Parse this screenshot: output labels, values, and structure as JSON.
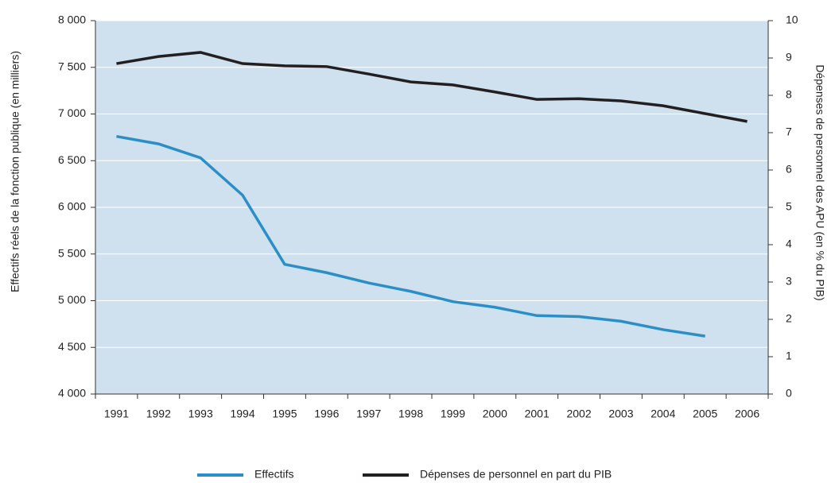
{
  "chart_data": {
    "type": "line",
    "categories": [
      "1991",
      "1992",
      "1993",
      "1994",
      "1995",
      "1996",
      "1997",
      "1998",
      "1999",
      "2000",
      "2001",
      "2002",
      "2003",
      "2004",
      "2005",
      "2006"
    ],
    "y_label": "Effectifs réels de la fonction publique (en milliers)",
    "y2_label": "Dépenses de personnel des APU (en % du PIB)",
    "ylim": [
      4000,
      8000
    ],
    "yticks": [
      {
        "value": 4000,
        "label": "4 000"
      },
      {
        "value": 4500,
        "label": "4 500"
      },
      {
        "value": 5000,
        "label": "5 000"
      },
      {
        "value": 5500,
        "label": "5 500"
      },
      {
        "value": 6000,
        "label": "6 000"
      },
      {
        "value": 6500,
        "label": "6 500"
      },
      {
        "value": 7000,
        "label": "7 000"
      },
      {
        "value": 7500,
        "label": "7 500"
      },
      {
        "value": 8000,
        "label": "8 000"
      }
    ],
    "y2lim": [
      0,
      10
    ],
    "y2ticks": [
      0,
      1,
      2,
      3,
      4,
      5,
      6,
      7,
      8,
      9,
      10
    ],
    "grid": true,
    "legend": "bottom",
    "series": [
      {
        "name": "Effectifs",
        "color": "#2b8fc7",
        "values": [
          6760,
          6680,
          6530,
          6130,
          5390,
          5300,
          5190,
          5100,
          4990,
          4930,
          4840,
          4830,
          4780,
          4690,
          4620,
          null
        ]
      },
      {
        "name": "Dépenses de personnel en part du PIB",
        "color": "#231f20",
        "axis": "y2",
        "values": [
          8.85,
          9.04,
          9.15,
          8.85,
          8.79,
          8.77,
          8.57,
          8.36,
          8.28,
          8.09,
          7.89,
          7.91,
          7.85,
          7.72,
          7.51,
          7.3
        ]
      }
    ]
  }
}
